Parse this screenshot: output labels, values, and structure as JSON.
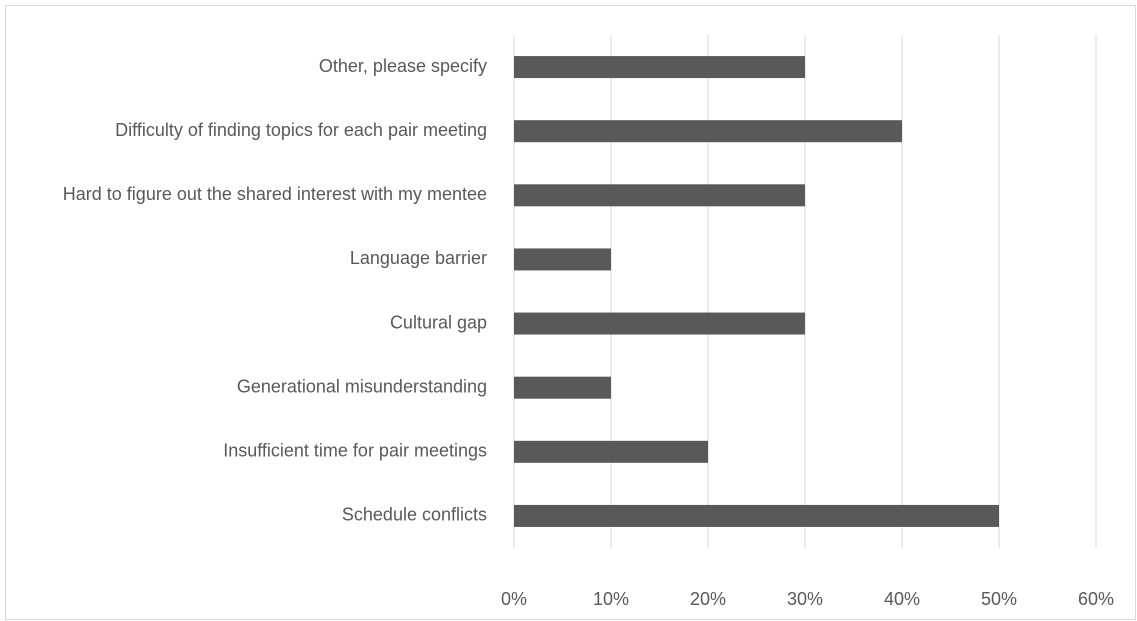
{
  "chart_data": {
    "type": "bar",
    "orientation": "horizontal",
    "categories": [
      "Other, please specify",
      "Difficulty of finding topics for each pair meeting",
      "Hard to figure out the shared interest with my mentee",
      "Language barrier",
      "Cultural gap",
      "Generational misunderstanding",
      "Insufficient time for pair meetings",
      "Schedule conflicts"
    ],
    "values": [
      30,
      40,
      30,
      10,
      30,
      10,
      20,
      50
    ],
    "color": "#595959",
    "xlim": [
      0,
      60
    ],
    "xticks": [
      {
        "value": 0,
        "label": "0%"
      },
      {
        "value": 10,
        "label": "10%"
      },
      {
        "value": 20,
        "label": "20%"
      },
      {
        "value": 30,
        "label": "30%"
      },
      {
        "value": 40,
        "label": "40%"
      },
      {
        "value": 50,
        "label": "50%"
      },
      {
        "value": 60,
        "label": "60%"
      }
    ],
    "grid": true
  }
}
